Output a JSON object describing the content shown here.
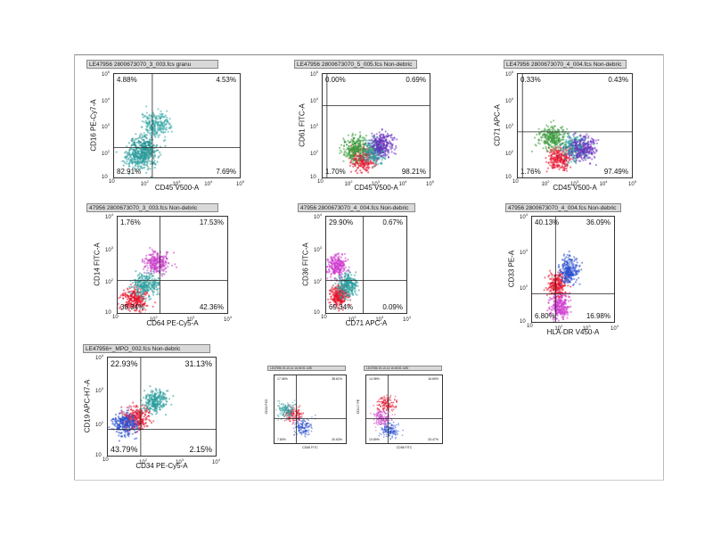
{
  "chart_data": [
    {
      "type": "scatter",
      "header": "LE47956 2800673070_3_003.fcs   granu",
      "xlabel": "CD45 V500-A",
      "ylabel": "CD16 PE-Cy7-A",
      "scale": "log",
      "xlim": [
        10,
        100000
      ],
      "ylim": [
        10,
        100000
      ],
      "quadrants": {
        "ul": "4.88%",
        "ur": "4.53%",
        "ll": "82.91%",
        "lr": "7.69%"
      },
      "populations": [
        {
          "x": 90,
          "y": 150,
          "color": "#1f8f8f"
        },
        {
          "x": 60,
          "y": 60,
          "color": "#2a9d9d"
        },
        {
          "x": 200,
          "y": 1200,
          "color": "#3aaaaa"
        }
      ]
    },
    {
      "type": "scatter",
      "header": "LE47956 2800673070_5_005.fcs   Non-debric",
      "xlabel": "CD45 V500-A",
      "ylabel": "CD61 FITC-A",
      "scale": "log",
      "xlim": [
        10,
        100000
      ],
      "ylim": [
        10,
        100000
      ],
      "quadrants": {
        "ul": "0.00%",
        "ur": "0.69%",
        "ll": "1.70%",
        "lr": "98.21%"
      },
      "populations": [
        {
          "x": 300,
          "y": 60,
          "color": "#e8102a"
        },
        {
          "x": 800,
          "y": 120,
          "color": "#2a9d9d"
        },
        {
          "x": 1500,
          "y": 200,
          "color": "#6a2fbf"
        },
        {
          "x": 150,
          "y": 150,
          "color": "#3a9a3a"
        }
      ]
    },
    {
      "type": "scatter",
      "header": "LE47956 2800673070_4_004.fcs   Non-debric",
      "xlabel": "CD45 V500-A",
      "ylabel": "CD71 APC-A",
      "scale": "log",
      "xlim": [
        10,
        100000
      ],
      "ylim": [
        10,
        100000
      ],
      "quadrants": {
        "ul": "0.33%",
        "ur": "0.43%",
        "ll": "1.76%",
        "lr": "97.49%"
      },
      "populations": [
        {
          "x": 300,
          "y": 60,
          "color": "#e8102a"
        },
        {
          "x": 900,
          "y": 150,
          "color": "#2a9d9d"
        },
        {
          "x": 1800,
          "y": 150,
          "color": "#6a2fbf"
        },
        {
          "x": 150,
          "y": 400,
          "color": "#3a9a3a"
        }
      ]
    },
    {
      "type": "scatter",
      "header": "47956 2800673070_3_003.fcs   Non-debric",
      "xlabel": "CD64 PE-Cy5-A",
      "ylabel": "CD14 FITC-A",
      "scale": "log",
      "xlim": [
        10,
        10000
      ],
      "ylim": [
        10,
        10000
      ],
      "quadrants": {
        "ul": "1.76%",
        "ur": "17.53%",
        "ll": "38.34%",
        "lr": "42.36%"
      },
      "populations": [
        {
          "x": 30,
          "y": 30,
          "color": "#e8102a"
        },
        {
          "x": 120,
          "y": 400,
          "color": "#c83cc8"
        },
        {
          "x": 60,
          "y": 80,
          "color": "#2a9d9d"
        }
      ]
    },
    {
      "type": "scatter",
      "header": "47956 2800673070_4_004.fcs   Non-debric",
      "xlabel": "CD71 APC-A",
      "ylabel": "CD36 FITC-A",
      "scale": "log",
      "xlim": [
        10,
        10000
      ],
      "ylim": [
        10,
        10000
      ],
      "quadrants": {
        "ul": "29.90%",
        "ur": "0.67%",
        "ll": "69.34%",
        "lr": "0.09%"
      },
      "populations": [
        {
          "x": 25,
          "y": 300,
          "color": "#d03ccf"
        },
        {
          "x": 30,
          "y": 40,
          "color": "#e8102a"
        },
        {
          "x": 60,
          "y": 80,
          "color": "#2a9d9d"
        }
      ]
    },
    {
      "type": "scatter",
      "header": "47956 2800673070_4_004.fcs   Non-debric",
      "xlabel": "HLA-DR V450-A",
      "ylabel": "CD33 PE-A",
      "scale": "log",
      "xlim": [
        10,
        10000
      ],
      "ylim": [
        10,
        10000
      ],
      "quadrants": {
        "ul": "40.13%",
        "ur": "36.09%",
        "ll": "6.80%",
        "lr": "16.98%"
      },
      "populations": [
        {
          "x": 80,
          "y": 120,
          "color": "#e8102a"
        },
        {
          "x": 200,
          "y": 300,
          "color": "#2a4fd0"
        },
        {
          "x": 100,
          "y": 30,
          "color": "#d03ccf"
        }
      ]
    },
    {
      "type": "scatter",
      "header": "LE47956+_MPO_002.fcs   Non-debric",
      "xlabel": "CD34 PE-Cy5-A",
      "ylabel": "CD19 APC-H7-A",
      "scale": "log",
      "xlim": [
        10,
        10000
      ],
      "ylim": [
        10,
        10000
      ],
      "quadrants": {
        "ul": "22.93%",
        "ur": "31.13%",
        "ll": "43.79%",
        "lr": "2.15%"
      },
      "populations": [
        {
          "x": 60,
          "y": 150,
          "color": "#e8102a"
        },
        {
          "x": 30,
          "y": 100,
          "color": "#2a4fd0"
        },
        {
          "x": 200,
          "y": 500,
          "color": "#2a9d9d"
        }
      ]
    },
    {
      "type": "scatter",
      "header": "LE47956 19-10-14 16:45:51 LMD",
      "xlabel": "CD56 FITC",
      "ylabel": "CD34 PC5",
      "scale": "log",
      "xlim": [
        10,
        10000
      ],
      "ylim": [
        10,
        10000
      ],
      "quadrants": {
        "ul": "17.36%",
        "ur": "38.61%",
        "ll": "7.80%",
        "lr": "20.63%"
      },
      "populations": [
        {
          "x": 60,
          "y": 200,
          "color": "#e8102a"
        },
        {
          "x": 150,
          "y": 60,
          "color": "#2a4fd0"
        },
        {
          "x": 30,
          "y": 300,
          "color": "#2a9d9d"
        }
      ]
    },
    {
      "type": "scatter",
      "header": "LE47956 19-10-14 16:45:51 LMD",
      "xlabel": "CD56 FITC",
      "ylabel": "CD117 PE",
      "scale": "log",
      "xlim": [
        10,
        10000
      ],
      "ylim": [
        10,
        10000
      ],
      "quadrants": {
        "ul": "14.98%",
        "ur": "16.69%",
        "ll": "10.89%",
        "lr": "33.47%"
      },
      "populations": [
        {
          "x": 60,
          "y": 600,
          "color": "#e8102a"
        },
        {
          "x": 80,
          "y": 40,
          "color": "#2a4fd0"
        },
        {
          "x": 40,
          "y": 150,
          "color": "#c83cc8"
        }
      ]
    }
  ]
}
